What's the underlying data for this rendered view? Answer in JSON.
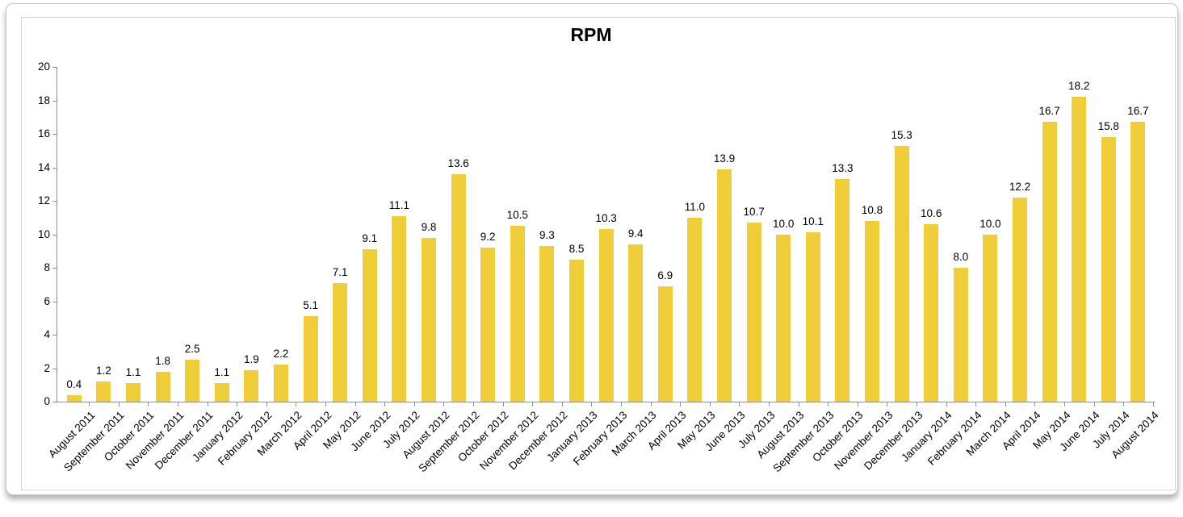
{
  "chart_data": {
    "type": "bar",
    "title": "RPM",
    "categories": [
      "August 2011",
      "September 2011",
      "October 2011",
      "November 2011",
      "December 2011",
      "January 2012",
      "February 2012",
      "March 2012",
      "April 2012",
      "May 2012",
      "June 2012",
      "July 2012",
      "August 2012",
      "September 2012",
      "October 2012",
      "November 2012",
      "December 2012",
      "January 2013",
      "February 2013",
      "March 2013",
      "April 2013",
      "May 2013",
      "June 2013",
      "July 2013",
      "August 2013",
      "September 2013",
      "October 2013",
      "November 2013",
      "December 2013",
      "January 2014",
      "February 2014",
      "March 2014",
      "April 2014",
      "May 2014",
      "June 2014",
      "July 2014",
      "August 2014"
    ],
    "values": [
      0.4,
      1.2,
      1.1,
      1.8,
      2.5,
      1.1,
      1.9,
      2.2,
      5.1,
      7.1,
      9.1,
      11.1,
      9.8,
      13.6,
      9.2,
      10.5,
      9.3,
      8.5,
      10.3,
      9.4,
      6.9,
      11.0,
      13.9,
      10.7,
      10.0,
      10.1,
      13.3,
      10.8,
      15.3,
      10.6,
      8.0,
      10.0,
      12.2,
      16.7,
      18.2,
      15.8,
      16.7
    ],
    "value_label_decimals": 1,
    "xlabel": "",
    "ylabel": "",
    "ylim": [
      0,
      20
    ],
    "yticks": [
      0,
      2,
      4,
      6,
      8,
      10,
      12,
      14,
      16,
      18,
      20
    ],
    "grid": false,
    "legend": null,
    "colors": {
      "bar": "#f0ce39",
      "axis": "#8f8f8f",
      "text": "#000000"
    }
  }
}
